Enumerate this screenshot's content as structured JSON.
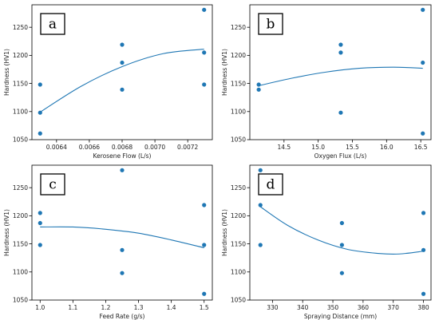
{
  "chart_data": [
    {
      "type": "scatter",
      "panel_label": "a",
      "xlabel": "Kerosene Flow (L/s)",
      "ylabel": "Hardness (HV1)",
      "xlim": [
        0.00625,
        0.00735
      ],
      "ylim": [
        1050,
        1290
      ],
      "xticks": [
        0.0064,
        0.0066,
        0.0068,
        0.007,
        0.0072
      ],
      "xtick_labels": [
        "0.0064",
        "0.0066",
        "0.0068",
        "0.0070",
        "0.0072"
      ],
      "yticks": [
        1050,
        1100,
        1150,
        1200,
        1250
      ],
      "ytick_labels": [
        "1050",
        "1100",
        "1150",
        "1200",
        "1250"
      ],
      "points": [
        {
          "x": 0.0063,
          "y": 1148
        },
        {
          "x": 0.0063,
          "y": 1098
        },
        {
          "x": 0.0063,
          "y": 1061
        },
        {
          "x": 0.0068,
          "y": 1219
        },
        {
          "x": 0.0068,
          "y": 1187
        },
        {
          "x": 0.0068,
          "y": 1139
        },
        {
          "x": 0.0073,
          "y": 1281
        },
        {
          "x": 0.0073,
          "y": 1205
        },
        {
          "x": 0.0073,
          "y": 1148
        }
      ],
      "fit": [
        {
          "x": 0.0063,
          "y": 1099
        },
        {
          "x": 0.00655,
          "y": 1145
        },
        {
          "x": 0.0068,
          "y": 1180
        },
        {
          "x": 0.00705,
          "y": 1203
        },
        {
          "x": 0.0073,
          "y": 1211
        }
      ]
    },
    {
      "type": "scatter",
      "panel_label": "b",
      "xlabel": "Oxygen Flux (L/s)",
      "ylabel": "Hardness (HV1)",
      "xlim": [
        14.0,
        16.65
      ],
      "ylim": [
        1050,
        1290
      ],
      "xticks": [
        14.5,
        15.0,
        15.5,
        16.0,
        16.5
      ],
      "xtick_labels": [
        "14.5",
        "15.0",
        "15.5",
        "16.0",
        "16.5"
      ],
      "yticks": [
        1050,
        1100,
        1150,
        1200,
        1250
      ],
      "ytick_labels": [
        "1050",
        "1100",
        "1150",
        "1200",
        "1250"
      ],
      "points": [
        {
          "x": 14.13,
          "y": 1148
        },
        {
          "x": 14.13,
          "y": 1139
        },
        {
          "x": 15.33,
          "y": 1219
        },
        {
          "x": 15.33,
          "y": 1205
        },
        {
          "x": 15.33,
          "y": 1098
        },
        {
          "x": 16.53,
          "y": 1281
        },
        {
          "x": 16.53,
          "y": 1187
        },
        {
          "x": 16.53,
          "y": 1061
        }
      ],
      "fit": [
        {
          "x": 14.13,
          "y": 1146
        },
        {
          "x": 14.6,
          "y": 1159
        },
        {
          "x": 15.1,
          "y": 1170
        },
        {
          "x": 15.6,
          "y": 1177
        },
        {
          "x": 16.1,
          "y": 1179
        },
        {
          "x": 16.53,
          "y": 1177
        }
      ]
    },
    {
      "type": "scatter",
      "panel_label": "c",
      "xlabel": "Feed Rate (g/s)",
      "ylabel": "Hardness (HV1)",
      "xlim": [
        0.975,
        1.525
      ],
      "ylim": [
        1050,
        1290
      ],
      "xticks": [
        1.0,
        1.1,
        1.2,
        1.3,
        1.4,
        1.5
      ],
      "xtick_labels": [
        "1.0",
        "1.1",
        "1.2",
        "1.3",
        "1.4",
        "1.5"
      ],
      "yticks": [
        1050,
        1100,
        1150,
        1200,
        1250
      ],
      "ytick_labels": [
        "1050",
        "1100",
        "1150",
        "1200",
        "1250"
      ],
      "points": [
        {
          "x": 1.0,
          "y": 1205
        },
        {
          "x": 1.0,
          "y": 1187
        },
        {
          "x": 1.0,
          "y": 1148
        },
        {
          "x": 1.25,
          "y": 1281
        },
        {
          "x": 1.25,
          "y": 1139
        },
        {
          "x": 1.25,
          "y": 1098
        },
        {
          "x": 1.5,
          "y": 1219
        },
        {
          "x": 1.5,
          "y": 1148
        },
        {
          "x": 1.5,
          "y": 1061
        }
      ],
      "fit": [
        {
          "x": 1.0,
          "y": 1180
        },
        {
          "x": 1.1,
          "y": 1180
        },
        {
          "x": 1.2,
          "y": 1176
        },
        {
          "x": 1.3,
          "y": 1169
        },
        {
          "x": 1.4,
          "y": 1157
        },
        {
          "x": 1.5,
          "y": 1143
        }
      ]
    },
    {
      "type": "scatter",
      "panel_label": "d",
      "xlabel": "Spraying Distance (mm)",
      "ylabel": "Hardness (HV1)",
      "xlim": [
        322.5,
        382.5
      ],
      "ylim": [
        1050,
        1290
      ],
      "xticks": [
        330,
        340,
        350,
        360,
        370,
        380
      ],
      "xtick_labels": [
        "330",
        "340",
        "350",
        "360",
        "370",
        "380"
      ],
      "yticks": [
        1050,
        1100,
        1150,
        1200,
        1250
      ],
      "ytick_labels": [
        "1050",
        "1100",
        "1150",
        "1200",
        "1250"
      ],
      "points": [
        {
          "x": 326,
          "y": 1281
        },
        {
          "x": 326,
          "y": 1219
        },
        {
          "x": 326,
          "y": 1148
        },
        {
          "x": 353,
          "y": 1187
        },
        {
          "x": 353,
          "y": 1148
        },
        {
          "x": 353,
          "y": 1098
        },
        {
          "x": 380,
          "y": 1205
        },
        {
          "x": 380,
          "y": 1139
        },
        {
          "x": 380,
          "y": 1061
        }
      ],
      "fit": [
        {
          "x": 326,
          "y": 1216
        },
        {
          "x": 335,
          "y": 1183
        },
        {
          "x": 345,
          "y": 1157
        },
        {
          "x": 355,
          "y": 1140
        },
        {
          "x": 365,
          "y": 1133
        },
        {
          "x": 372,
          "y": 1132
        },
        {
          "x": 380,
          "y": 1137
        }
      ]
    }
  ],
  "style": {
    "point_color": "#1f77b4",
    "line_color": "#1f77b4",
    "axis_color": "#000000",
    "grid": false,
    "legend": "none"
  }
}
